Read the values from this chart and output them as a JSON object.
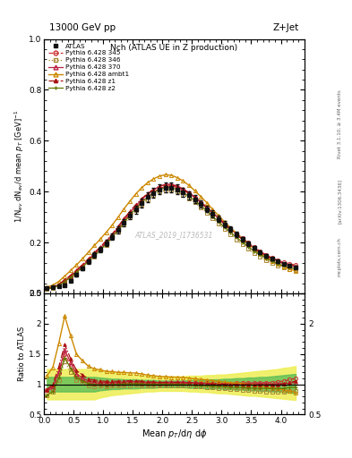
{
  "title_top": "13000 GeV pp",
  "title_right": "Z+Jet",
  "plot_title": "Nch (ATLAS UE in Z production)",
  "xlabel": "Mean $p_T$/d$\\eta$ d$\\phi$",
  "ylabel_main": "1/N$_{ev}$ dN$_{ev}$/d mean $p_T$ [GeV]$^{-1}$",
  "ylabel_ratio": "Ratio to ATLAS",
  "watermark": "ATLAS_2019_I1736531",
  "rivet_label": "Rivet 3.1.10, ≥ 3.4M events",
  "arxiv_label": "[arXiv:1306.3436]",
  "mcplots_label": "mcplots.cern.ch",
  "x_data": [
    0.05,
    0.15,
    0.25,
    0.35,
    0.45,
    0.55,
    0.65,
    0.75,
    0.85,
    0.95,
    1.05,
    1.15,
    1.25,
    1.35,
    1.45,
    1.55,
    1.65,
    1.75,
    1.85,
    1.95,
    2.05,
    2.15,
    2.25,
    2.35,
    2.45,
    2.55,
    2.65,
    2.75,
    2.85,
    2.95,
    3.05,
    3.15,
    3.25,
    3.35,
    3.45,
    3.55,
    3.65,
    3.75,
    3.85,
    3.95,
    4.05,
    4.15,
    4.25
  ],
  "atlas_data": [
    0.022,
    0.025,
    0.028,
    0.032,
    0.05,
    0.075,
    0.098,
    0.125,
    0.15,
    0.172,
    0.198,
    0.222,
    0.25,
    0.278,
    0.305,
    0.33,
    0.355,
    0.378,
    0.395,
    0.408,
    0.415,
    0.415,
    0.408,
    0.398,
    0.385,
    0.37,
    0.352,
    0.332,
    0.312,
    0.292,
    0.272,
    0.252,
    0.232,
    0.213,
    0.195,
    0.178,
    0.162,
    0.148,
    0.136,
    0.125,
    0.116,
    0.108,
    0.102
  ],
  "py345_data": [
    0.02,
    0.023,
    0.033,
    0.048,
    0.065,
    0.085,
    0.105,
    0.128,
    0.152,
    0.174,
    0.198,
    0.224,
    0.252,
    0.282,
    0.31,
    0.337,
    0.36,
    0.381,
    0.398,
    0.412,
    0.42,
    0.422,
    0.416,
    0.406,
    0.392,
    0.376,
    0.357,
    0.337,
    0.316,
    0.295,
    0.275,
    0.255,
    0.236,
    0.217,
    0.199,
    0.182,
    0.166,
    0.152,
    0.14,
    0.13,
    0.122,
    0.116,
    0.112
  ],
  "py346_data": [
    0.018,
    0.022,
    0.03,
    0.044,
    0.06,
    0.08,
    0.1,
    0.122,
    0.145,
    0.167,
    0.191,
    0.216,
    0.244,
    0.272,
    0.299,
    0.326,
    0.349,
    0.37,
    0.386,
    0.399,
    0.405,
    0.406,
    0.399,
    0.388,
    0.374,
    0.357,
    0.338,
    0.317,
    0.295,
    0.273,
    0.252,
    0.232,
    0.212,
    0.193,
    0.175,
    0.158,
    0.143,
    0.13,
    0.119,
    0.11,
    0.102,
    0.096,
    0.091
  ],
  "py370_data": [
    0.02,
    0.024,
    0.034,
    0.05,
    0.068,
    0.088,
    0.108,
    0.132,
    0.156,
    0.178,
    0.203,
    0.229,
    0.258,
    0.289,
    0.317,
    0.344,
    0.368,
    0.39,
    0.407,
    0.42,
    0.428,
    0.429,
    0.422,
    0.411,
    0.396,
    0.379,
    0.359,
    0.339,
    0.317,
    0.296,
    0.275,
    0.254,
    0.234,
    0.215,
    0.197,
    0.179,
    0.163,
    0.149,
    0.136,
    0.126,
    0.117,
    0.11,
    0.105
  ],
  "pyambt1_data": [
    0.025,
    0.032,
    0.047,
    0.068,
    0.09,
    0.112,
    0.136,
    0.162,
    0.188,
    0.213,
    0.24,
    0.268,
    0.299,
    0.332,
    0.362,
    0.391,
    0.415,
    0.435,
    0.45,
    0.461,
    0.466,
    0.464,
    0.455,
    0.442,
    0.424,
    0.403,
    0.38,
    0.356,
    0.33,
    0.305,
    0.281,
    0.258,
    0.236,
    0.215,
    0.195,
    0.176,
    0.158,
    0.142,
    0.128,
    0.116,
    0.105,
    0.096,
    0.088
  ],
  "pyz1_data": [
    0.02,
    0.025,
    0.036,
    0.053,
    0.071,
    0.092,
    0.113,
    0.136,
    0.16,
    0.182,
    0.207,
    0.233,
    0.262,
    0.294,
    0.322,
    0.349,
    0.372,
    0.393,
    0.409,
    0.421,
    0.427,
    0.427,
    0.42,
    0.408,
    0.393,
    0.376,
    0.356,
    0.335,
    0.314,
    0.292,
    0.271,
    0.251,
    0.231,
    0.212,
    0.194,
    0.176,
    0.161,
    0.147,
    0.135,
    0.125,
    0.117,
    0.111,
    0.107
  ],
  "pyz2_data": [
    0.018,
    0.022,
    0.031,
    0.046,
    0.063,
    0.083,
    0.103,
    0.126,
    0.149,
    0.17,
    0.195,
    0.22,
    0.249,
    0.279,
    0.307,
    0.333,
    0.357,
    0.378,
    0.395,
    0.408,
    0.415,
    0.415,
    0.408,
    0.396,
    0.381,
    0.364,
    0.345,
    0.324,
    0.302,
    0.281,
    0.26,
    0.24,
    0.22,
    0.201,
    0.183,
    0.166,
    0.151,
    0.138,
    0.126,
    0.116,
    0.108,
    0.102,
    0.097
  ],
  "atlas_err_lo": [
    0.004,
    0.004,
    0.004,
    0.005,
    0.006,
    0.007,
    0.008,
    0.009,
    0.01,
    0.01,
    0.011,
    0.012,
    0.013,
    0.014,
    0.015,
    0.016,
    0.017,
    0.018,
    0.018,
    0.019,
    0.019,
    0.019,
    0.019,
    0.018,
    0.017,
    0.016,
    0.015,
    0.014,
    0.013,
    0.012,
    0.011,
    0.01,
    0.009,
    0.008,
    0.008,
    0.007,
    0.006,
    0.006,
    0.005,
    0.005,
    0.005,
    0.004,
    0.004
  ],
  "atlas_err_hi": [
    0.004,
    0.004,
    0.004,
    0.005,
    0.006,
    0.007,
    0.008,
    0.009,
    0.01,
    0.01,
    0.011,
    0.012,
    0.013,
    0.014,
    0.015,
    0.016,
    0.017,
    0.018,
    0.018,
    0.019,
    0.019,
    0.019,
    0.019,
    0.018,
    0.017,
    0.016,
    0.015,
    0.014,
    0.013,
    0.012,
    0.011,
    0.01,
    0.009,
    0.008,
    0.008,
    0.007,
    0.006,
    0.006,
    0.005,
    0.005,
    0.005,
    0.004,
    0.004
  ],
  "green_band_lo": [
    0.88,
    0.88,
    0.88,
    0.88,
    0.88,
    0.88,
    0.88,
    0.88,
    0.88,
    0.9,
    0.91,
    0.92,
    0.92,
    0.93,
    0.93,
    0.93,
    0.94,
    0.94,
    0.94,
    0.95,
    0.95,
    0.95,
    0.95,
    0.95,
    0.94,
    0.94,
    0.94,
    0.93,
    0.93,
    0.93,
    0.92,
    0.92,
    0.91,
    0.91,
    0.9,
    0.9,
    0.89,
    0.89,
    0.88,
    0.88,
    0.87,
    0.86,
    0.85
  ],
  "green_band_hi": [
    1.12,
    1.12,
    1.12,
    1.12,
    1.12,
    1.12,
    1.12,
    1.12,
    1.12,
    1.11,
    1.1,
    1.09,
    1.09,
    1.08,
    1.08,
    1.08,
    1.07,
    1.07,
    1.07,
    1.06,
    1.06,
    1.06,
    1.06,
    1.06,
    1.07,
    1.07,
    1.07,
    1.08,
    1.08,
    1.08,
    1.09,
    1.09,
    1.1,
    1.1,
    1.11,
    1.11,
    1.12,
    1.12,
    1.13,
    1.14,
    1.15,
    1.16,
    1.17
  ],
  "yellow_band_lo": [
    0.75,
    0.75,
    0.75,
    0.75,
    0.75,
    0.75,
    0.75,
    0.75,
    0.75,
    0.78,
    0.8,
    0.82,
    0.83,
    0.84,
    0.85,
    0.86,
    0.87,
    0.88,
    0.88,
    0.89,
    0.89,
    0.89,
    0.89,
    0.89,
    0.88,
    0.88,
    0.87,
    0.87,
    0.86,
    0.85,
    0.85,
    0.84,
    0.83,
    0.82,
    0.81,
    0.81,
    0.8,
    0.79,
    0.78,
    0.77,
    0.76,
    0.75,
    0.74
  ],
  "yellow_band_hi": [
    1.25,
    1.25,
    1.25,
    1.25,
    1.25,
    1.25,
    1.25,
    1.25,
    1.25,
    1.23,
    1.22,
    1.2,
    1.19,
    1.18,
    1.17,
    1.16,
    1.15,
    1.14,
    1.14,
    1.13,
    1.13,
    1.13,
    1.13,
    1.13,
    1.14,
    1.14,
    1.14,
    1.15,
    1.15,
    1.16,
    1.16,
    1.17,
    1.18,
    1.19,
    1.2,
    1.21,
    1.22,
    1.23,
    1.24,
    1.25,
    1.27,
    1.28,
    1.3
  ],
  "xlim": [
    0.0,
    4.4
  ],
  "ylim_main": [
    0.0,
    1.0
  ],
  "ylim_ratio": [
    0.5,
    2.5
  ],
  "color_345": "#cc3333",
  "color_346": "#aa8833",
  "color_370": "#bb2244",
  "color_ambt1": "#cc8800",
  "color_z1": "#aa1111",
  "color_z2": "#667700",
  "color_atlas": "#111111"
}
